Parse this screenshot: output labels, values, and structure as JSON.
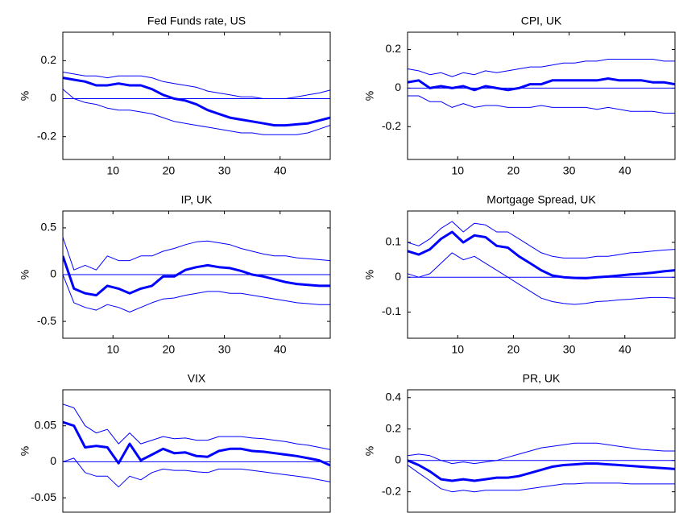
{
  "chart_data": [
    {
      "type": "line",
      "title": "Fed Funds rate, US",
      "ylabel": "%",
      "x": [
        1,
        3,
        5,
        7,
        9,
        11,
        13,
        15,
        17,
        19,
        21,
        23,
        25,
        27,
        29,
        31,
        33,
        35,
        37,
        39,
        41,
        43,
        45,
        47,
        49
      ],
      "xlim": [
        1,
        49
      ],
      "xticks": [
        10,
        20,
        30,
        40
      ],
      "ylim": [
        -0.32,
        0.35
      ],
      "yticks": [
        -0.2,
        0,
        0.2
      ],
      "series": [
        {
          "color": "#0000ff",
          "values": [
            0.11,
            0.1,
            0.09,
            0.07,
            0.07,
            0.08,
            0.07,
            0.07,
            0.05,
            0.02,
            0.0,
            -0.01,
            -0.03,
            -0.06,
            -0.08,
            -0.1,
            -0.11,
            -0.12,
            -0.13,
            -0.14,
            -0.14,
            -0.135,
            -0.13,
            -0.115,
            -0.1
          ]
        },
        {
          "color": "#0000ff",
          "values": [
            0.14,
            0.13,
            0.12,
            0.12,
            0.11,
            0.12,
            0.12,
            0.12,
            0.11,
            0.09,
            0.08,
            0.07,
            0.06,
            0.04,
            0.03,
            0.02,
            0.01,
            0.01,
            0.0,
            0.0,
            0.0,
            0.01,
            0.02,
            0.03,
            0.045
          ]
        },
        {
          "color": "#0000ff",
          "values": [
            0.05,
            0.0,
            -0.02,
            -0.03,
            -0.05,
            -0.06,
            -0.06,
            -0.07,
            -0.08,
            -0.1,
            -0.12,
            -0.13,
            -0.14,
            -0.15,
            -0.16,
            -0.17,
            -0.18,
            -0.18,
            -0.19,
            -0.19,
            -0.19,
            -0.19,
            -0.18,
            -0.16,
            -0.14
          ]
        }
      ]
    },
    {
      "type": "line",
      "title": "CPI, UK",
      "ylabel": "%",
      "x": [
        1,
        3,
        5,
        7,
        9,
        11,
        13,
        15,
        17,
        19,
        21,
        23,
        25,
        27,
        29,
        31,
        33,
        35,
        37,
        39,
        41,
        43,
        45,
        47,
        49
      ],
      "xlim": [
        1,
        49
      ],
      "xticks": [
        10,
        20,
        30,
        40
      ],
      "ylim": [
        -0.37,
        0.29
      ],
      "yticks": [
        -0.2,
        0,
        0.2
      ],
      "series": [
        {
          "color": "#0000ff",
          "values": [
            0.03,
            0.04,
            0.0,
            0.01,
            0.0,
            0.01,
            -0.01,
            0.01,
            0.0,
            -0.01,
            0.0,
            0.02,
            0.02,
            0.04,
            0.04,
            0.04,
            0.04,
            0.04,
            0.05,
            0.04,
            0.04,
            0.04,
            0.03,
            0.03,
            0.02
          ]
        },
        {
          "color": "#0000ff",
          "values": [
            0.1,
            0.09,
            0.07,
            0.08,
            0.06,
            0.08,
            0.07,
            0.09,
            0.08,
            0.09,
            0.1,
            0.11,
            0.11,
            0.12,
            0.13,
            0.13,
            0.14,
            0.14,
            0.15,
            0.15,
            0.15,
            0.15,
            0.15,
            0.14,
            0.14
          ]
        },
        {
          "color": "#0000ff",
          "values": [
            -0.04,
            -0.04,
            -0.07,
            -0.07,
            -0.1,
            -0.08,
            -0.1,
            -0.09,
            -0.09,
            -0.1,
            -0.1,
            -0.1,
            -0.09,
            -0.1,
            -0.1,
            -0.1,
            -0.1,
            -0.11,
            -0.1,
            -0.11,
            -0.12,
            -0.12,
            -0.12,
            -0.13,
            -0.13
          ]
        }
      ]
    },
    {
      "type": "line",
      "title": "IP, UK",
      "ylabel": "%",
      "x": [
        1,
        3,
        5,
        7,
        9,
        11,
        13,
        15,
        17,
        19,
        21,
        23,
        25,
        27,
        29,
        31,
        33,
        35,
        37,
        39,
        41,
        43,
        45,
        47,
        49
      ],
      "xlim": [
        1,
        49
      ],
      "xticks": [
        10,
        20,
        30,
        40
      ],
      "ylim": [
        -0.68,
        0.68
      ],
      "yticks": [
        -0.5,
        0,
        0.5
      ],
      "series": [
        {
          "color": "#0000ff",
          "values": [
            0.2,
            -0.15,
            -0.2,
            -0.22,
            -0.12,
            -0.15,
            -0.2,
            -0.15,
            -0.12,
            -0.02,
            -0.02,
            0.05,
            0.08,
            0.1,
            0.08,
            0.07,
            0.04,
            0.0,
            -0.02,
            -0.05,
            -0.08,
            -0.1,
            -0.11,
            -0.12,
            -0.12
          ]
        },
        {
          "color": "#0000ff",
          "values": [
            0.4,
            0.05,
            0.1,
            0.05,
            0.2,
            0.15,
            0.15,
            0.2,
            0.2,
            0.25,
            0.28,
            0.32,
            0.35,
            0.36,
            0.34,
            0.32,
            0.28,
            0.25,
            0.22,
            0.2,
            0.2,
            0.18,
            0.17,
            0.16,
            0.15
          ]
        },
        {
          "color": "#0000ff",
          "values": [
            0.0,
            -0.3,
            -0.35,
            -0.38,
            -0.32,
            -0.35,
            -0.4,
            -0.35,
            -0.3,
            -0.26,
            -0.25,
            -0.22,
            -0.2,
            -0.18,
            -0.18,
            -0.2,
            -0.2,
            -0.22,
            -0.24,
            -0.26,
            -0.28,
            -0.3,
            -0.31,
            -0.32,
            -0.32
          ]
        }
      ]
    },
    {
      "type": "line",
      "title": "Mortgage Spread, UK",
      "ylabel": "%",
      "x": [
        1,
        3,
        5,
        7,
        9,
        11,
        13,
        15,
        17,
        19,
        21,
        23,
        25,
        27,
        29,
        31,
        33,
        35,
        37,
        39,
        41,
        43,
        45,
        47,
        49
      ],
      "xlim": [
        1,
        49
      ],
      "xticks": [
        10,
        20,
        30,
        40
      ],
      "ylim": [
        -0.175,
        0.19
      ],
      "yticks": [
        -0.1,
        0,
        0.1
      ],
      "series": [
        {
          "color": "#0000ff",
          "values": [
            0.075,
            0.065,
            0.08,
            0.11,
            0.13,
            0.1,
            0.12,
            0.115,
            0.09,
            0.085,
            0.06,
            0.04,
            0.02,
            0.005,
            0.0,
            -0.002,
            -0.003,
            0.0,
            0.002,
            0.005,
            0.008,
            0.01,
            0.013,
            0.017,
            0.02
          ]
        },
        {
          "color": "#0000ff",
          "values": [
            0.1,
            0.09,
            0.11,
            0.14,
            0.16,
            0.13,
            0.155,
            0.15,
            0.13,
            0.13,
            0.11,
            0.09,
            0.07,
            0.06,
            0.055,
            0.055,
            0.055,
            0.06,
            0.06,
            0.065,
            0.07,
            0.072,
            0.075,
            0.078,
            0.08
          ]
        },
        {
          "color": "#0000ff",
          "values": [
            0.01,
            0.0,
            0.01,
            0.04,
            0.07,
            0.05,
            0.06,
            0.04,
            0.02,
            0.0,
            -0.02,
            -0.04,
            -0.06,
            -0.07,
            -0.075,
            -0.078,
            -0.075,
            -0.07,
            -0.068,
            -0.065,
            -0.063,
            -0.06,
            -0.058,
            -0.058,
            -0.06
          ]
        }
      ]
    },
    {
      "type": "line",
      "title": "VIX",
      "ylabel": "%",
      "x": [
        1,
        3,
        5,
        7,
        9,
        11,
        13,
        15,
        17,
        19,
        21,
        23,
        25,
        27,
        29,
        31,
        33,
        35,
        37,
        39,
        41,
        43,
        45,
        47,
        49
      ],
      "xlim": [
        1,
        49
      ],
      "ylim": [
        -0.07,
        0.1
      ],
      "yticks": [
        -0.05,
        0,
        0.05
      ],
      "series": [
        {
          "color": "#0000ff",
          "values": [
            0.055,
            0.05,
            0.02,
            0.022,
            0.02,
            -0.002,
            0.025,
            0.002,
            0.01,
            0.018,
            0.012,
            0.013,
            0.008,
            0.007,
            0.015,
            0.018,
            0.018,
            0.015,
            0.014,
            0.012,
            0.01,
            0.008,
            0.005,
            0.002,
            -0.005
          ]
        },
        {
          "color": "#0000ff",
          "values": [
            0.08,
            0.075,
            0.05,
            0.04,
            0.045,
            0.025,
            0.04,
            0.025,
            0.03,
            0.035,
            0.032,
            0.033,
            0.03,
            0.03,
            0.035,
            0.035,
            0.035,
            0.033,
            0.032,
            0.03,
            0.028,
            0.025,
            0.023,
            0.02,
            0.017
          ]
        },
        {
          "color": "#0000ff",
          "values": [
            0.0,
            0.005,
            -0.015,
            -0.02,
            -0.02,
            -0.035,
            -0.02,
            -0.025,
            -0.015,
            -0.01,
            -0.012,
            -0.012,
            -0.014,
            -0.015,
            -0.01,
            -0.01,
            -0.01,
            -0.012,
            -0.014,
            -0.016,
            -0.018,
            -0.02,
            -0.022,
            -0.025,
            -0.028
          ]
        }
      ]
    },
    {
      "type": "line",
      "title": "PR, UK",
      "ylabel": "%",
      "x": [
        1,
        3,
        5,
        7,
        9,
        11,
        13,
        15,
        17,
        19,
        21,
        23,
        25,
        27,
        29,
        31,
        33,
        35,
        37,
        39,
        41,
        43,
        45,
        47,
        49
      ],
      "xlim": [
        1,
        49
      ],
      "ylim": [
        -0.33,
        0.45
      ],
      "yticks": [
        -0.2,
        0,
        0.2,
        0.4
      ],
      "series": [
        {
          "color": "#0000ff",
          "values": [
            0.0,
            -0.03,
            -0.07,
            -0.12,
            -0.13,
            -0.12,
            -0.13,
            -0.12,
            -0.11,
            -0.11,
            -0.1,
            -0.08,
            -0.06,
            -0.04,
            -0.03,
            -0.025,
            -0.02,
            -0.02,
            -0.025,
            -0.03,
            -0.035,
            -0.04,
            -0.045,
            -0.05,
            -0.055
          ]
        },
        {
          "color": "#0000ff",
          "values": [
            0.03,
            0.04,
            0.03,
            0.0,
            -0.02,
            -0.01,
            -0.02,
            -0.01,
            0.0,
            0.02,
            0.04,
            0.06,
            0.08,
            0.09,
            0.1,
            0.11,
            0.11,
            0.11,
            0.1,
            0.09,
            0.08,
            0.07,
            0.065,
            0.06,
            0.06
          ]
        },
        {
          "color": "#0000ff",
          "values": [
            -0.03,
            -0.08,
            -0.13,
            -0.18,
            -0.2,
            -0.19,
            -0.2,
            -0.19,
            -0.19,
            -0.19,
            -0.19,
            -0.18,
            -0.17,
            -0.16,
            -0.15,
            -0.15,
            -0.145,
            -0.145,
            -0.145,
            -0.145,
            -0.15,
            -0.15,
            -0.15,
            -0.15,
            -0.15
          ]
        }
      ]
    }
  ]
}
